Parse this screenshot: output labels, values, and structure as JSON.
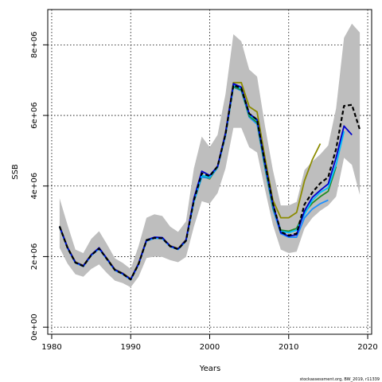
{
  "chart_data": {
    "type": "line",
    "xlabel": "Years",
    "ylabel": "SSB",
    "xlim": [
      1979.5,
      2020.5
    ],
    "ylim": [
      -200000,
      9000000
    ],
    "x_ticks": [
      1980,
      1990,
      2000,
      2010,
      2020
    ],
    "y_ticks": [
      0,
      2000000,
      4000000,
      6000000,
      8000000
    ],
    "y_tick_labels": [
      "0e+00",
      "2e+06",
      "4e+06",
      "6e+06",
      "8e+06"
    ],
    "grid": true,
    "credit": "stockassessment.org, BW_2019, r11339",
    "colors": {
      "band": "#bebebe",
      "band_light": "#add8e6",
      "current": "#000000",
      "retro": [
        "#0000cd",
        "#00bfff",
        "#228b22",
        "#1e90ff",
        "#8b8b00",
        "#2e8b57"
      ]
    },
    "confidence_band": {
      "x": [
        1981,
        1982,
        1983,
        1984,
        1985,
        1986,
        1987,
        1988,
        1989,
        1990,
        1991,
        1992,
        1993,
        1994,
        1995,
        1996,
        1997,
        1998,
        1999,
        2000,
        2001,
        2002,
        2003,
        2004,
        2005,
        2006,
        2007,
        2008,
        2009,
        2010,
        2011,
        2012,
        2013,
        2014,
        2015,
        2016,
        2017,
        2018,
        2019
      ],
      "lower": [
        2250000,
        1800000,
        1500000,
        1430000,
        1650000,
        1780000,
        1530000,
        1320000,
        1250000,
        1130000,
        1430000,
        1960000,
        2000000,
        1990000,
        1900000,
        1840000,
        1990000,
        2850000,
        3570000,
        3500000,
        3800000,
        4500000,
        5650000,
        5650000,
        5100000,
        4950000,
        3900000,
        2900000,
        2200000,
        2100000,
        2140000,
        2800000,
        3100000,
        3300000,
        3450000,
        3700000,
        4800000,
        4600000,
        3750000
      ],
      "upper": [
        3650000,
        2900000,
        2200000,
        2100000,
        2500000,
        2720000,
        2350000,
        1950000,
        1820000,
        1650000,
        2300000,
        3100000,
        3200000,
        3150000,
        2850000,
        2700000,
        3000000,
        4500000,
        5400000,
        5100000,
        5450000,
        6600000,
        8300000,
        8100000,
        7300000,
        7100000,
        5700000,
        4450000,
        3450000,
        3450000,
        3550000,
        4450000,
        4700000,
        4900000,
        5150000,
        6200000,
        8200000,
        8600000,
        8350000
      ]
    },
    "series": [
      {
        "x": [
          1981,
          1982,
          1983,
          1984,
          1985,
          1986,
          1987,
          1988,
          1989,
          1990,
          1991,
          1992,
          1993,
          1994,
          1995,
          1996,
          1997,
          1998,
          1999,
          2000,
          2001,
          2002,
          2003,
          2004,
          2005,
          2006,
          2007,
          2008,
          2009,
          2010,
          2011,
          2012,
          2013,
          2014,
          2015,
          2016,
          2017,
          2018,
          2019
        ],
        "values": [
          2850000,
          2250000,
          1830000,
          1730000,
          2040000,
          2230000,
          1930000,
          1620000,
          1510000,
          1350000,
          1790000,
          2460000,
          2530000,
          2520000,
          2290000,
          2210000,
          2450000,
          3600000,
          4360000,
          4280000,
          4560000,
          5470000,
          6860000,
          6770000,
          6050000,
          5880000,
          4650000,
          3500000,
          2700000,
          2600000,
          2650000,
          3480000,
          3820000,
          4080000,
          4250000,
          5050000,
          6270000,
          6300000,
          5600000
        ],
        "dashed": true
      },
      {
        "x": [
          1981,
          1982,
          1983,
          1984,
          1985,
          1986,
          1987,
          1988,
          1989,
          1990,
          1991,
          1992,
          1993,
          1994,
          1995,
          1996,
          1997,
          1998,
          1999,
          2000,
          2001,
          2002,
          2003,
          2004,
          2005,
          2006,
          2007,
          2008,
          2009,
          2010,
          2011,
          2012,
          2013,
          2014,
          2015,
          2016,
          2017,
          2018
        ],
        "values": [
          2860000,
          2260000,
          1840000,
          1740000,
          2050000,
          2250000,
          1940000,
          1630000,
          1520000,
          1360000,
          1800000,
          2470000,
          2550000,
          2540000,
          2300000,
          2220000,
          2470000,
          3650000,
          4420000,
          4300000,
          4560000,
          5500000,
          6900000,
          6800000,
          6050000,
          5880000,
          4650000,
          3500000,
          2680000,
          2580000,
          2620000,
          3300000,
          3680000,
          3880000,
          4060000,
          4800000,
          5700000,
          5450000
        ],
        "dashed": false
      },
      {
        "x": [
          1981,
          1982,
          1983,
          1984,
          1985,
          1986,
          1987,
          1988,
          1989,
          1990,
          1991,
          1992,
          1993,
          1994,
          1995,
          1996,
          1997,
          1998,
          1999,
          2000,
          2001,
          2002,
          2003,
          2004,
          2005,
          2006,
          2007,
          2008,
          2009,
          2010,
          2011,
          2012,
          2013,
          2014,
          2015,
          2016,
          2017
        ],
        "values": [
          2850000,
          2250000,
          1830000,
          1730000,
          2040000,
          2240000,
          1930000,
          1620000,
          1510000,
          1350000,
          1790000,
          2460000,
          2530000,
          2520000,
          2290000,
          2210000,
          2450000,
          3580000,
          4300000,
          4250000,
          4550000,
          5480000,
          6850000,
          6760000,
          6020000,
          5850000,
          4600000,
          3450000,
          2720000,
          2680000,
          2750000,
          3200000,
          3600000,
          3820000,
          3950000,
          4600000,
          5550000
        ],
        "dashed": false
      },
      {
        "x": [
          1981,
          1982,
          1983,
          1984,
          1985,
          1986,
          1987,
          1988,
          1989,
          1990,
          1991,
          1992,
          1993,
          1994,
          1995,
          1996,
          1997,
          1998,
          1999,
          2000,
          2001,
          2002,
          2003,
          2004,
          2005,
          2006,
          2007,
          2008,
          2009,
          2010,
          2011,
          2012,
          2013,
          2014,
          2015,
          2016
        ],
        "values": [
          2850000,
          2250000,
          1830000,
          1730000,
          2040000,
          2240000,
          1930000,
          1620000,
          1510000,
          1350000,
          1790000,
          2460000,
          2530000,
          2520000,
          2290000,
          2210000,
          2450000,
          3570000,
          4290000,
          4240000,
          4540000,
          5450000,
          6820000,
          6720000,
          5980000,
          5800000,
          4550000,
          3400000,
          2750000,
          2720000,
          2800000,
          3250000,
          3520000,
          3700000,
          3850000,
          4550000
        ],
        "dashed": false
      },
      {
        "x": [
          1981,
          1982,
          1983,
          1984,
          1985,
          1986,
          1987,
          1988,
          1989,
          1990,
          1991,
          1992,
          1993,
          1994,
          1995,
          1996,
          1997,
          1998,
          1999,
          2000,
          2001,
          2002,
          2003,
          2004,
          2005,
          2006,
          2007,
          2008,
          2009,
          2010,
          2011,
          2012,
          2013,
          2014,
          2015
        ],
        "values": [
          2840000,
          2240000,
          1820000,
          1720000,
          2030000,
          2220000,
          1920000,
          1610000,
          1500000,
          1340000,
          1780000,
          2440000,
          2520000,
          2510000,
          2280000,
          2200000,
          2440000,
          3550000,
          4250000,
          4220000,
          4520000,
          5420000,
          6800000,
          6700000,
          5950000,
          5750000,
          4500000,
          3350000,
          2650000,
          2550000,
          2550000,
          3100000,
          3350000,
          3500000,
          3600000
        ],
        "dashed": false
      },
      {
        "x": [
          1981,
          1982,
          1983,
          1984,
          1985,
          1986,
          1987,
          1988,
          1989,
          1990,
          1991,
          1992,
          1993,
          1994,
          1995,
          1996,
          1997,
          1998,
          1999,
          2000,
          2001,
          2002,
          2003,
          2004,
          2005,
          2006,
          2007,
          2008,
          2009,
          2010,
          2011,
          2012,
          2013,
          2014
        ],
        "values": [
          2870000,
          2270000,
          1850000,
          1750000,
          2060000,
          2230000,
          1950000,
          1640000,
          1530000,
          1370000,
          1820000,
          2480000,
          2540000,
          2530000,
          2310000,
          2230000,
          2480000,
          3550000,
          4280000,
          4200000,
          4560000,
          5520000,
          6930000,
          6930000,
          6250000,
          6100000,
          4800000,
          3600000,
          3100000,
          3100000,
          3250000,
          4150000,
          4750000,
          5200000
        ],
        "dashed": false
      }
    ]
  }
}
